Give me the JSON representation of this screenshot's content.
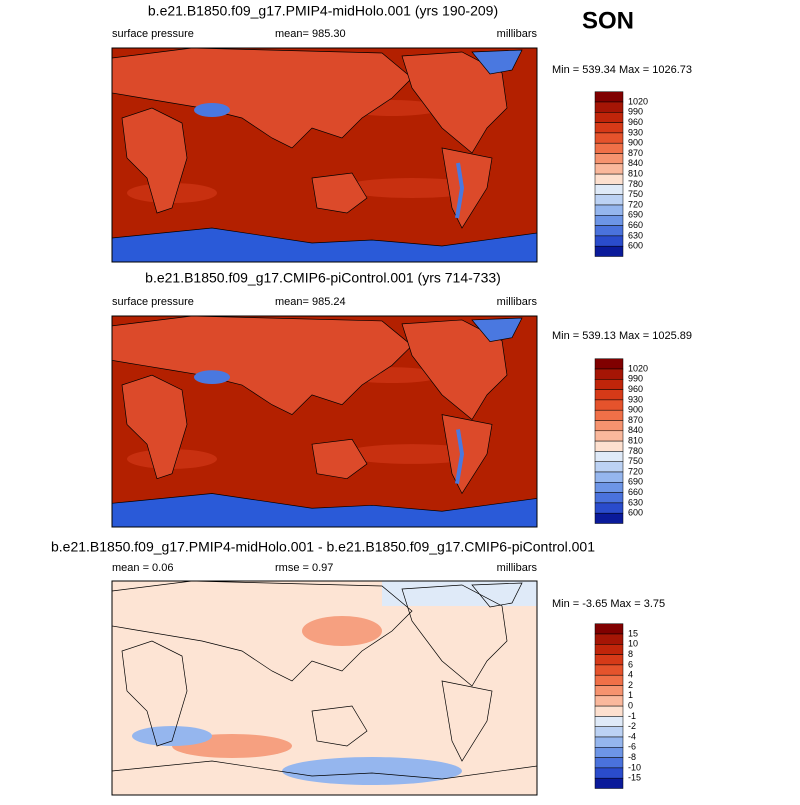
{
  "season": "SON",
  "panels": [
    {
      "title": "b.e21.B1850.f09_g17.PMIP4-midHolo.001 (yrs 190-209)",
      "left": "surface pressure",
      "center": "mean= 985.30",
      "right": "millibars",
      "minmax": "Min = 539.34 Max = 1026.73",
      "colorbar": {
        "labels": [
          1020,
          990,
          960,
          930,
          900,
          870,
          840,
          810,
          780,
          750,
          720,
          690,
          660,
          630,
          600
        ],
        "colors": [
          "#800000",
          "#a51505",
          "#c0250a",
          "#d63a18",
          "#e5532c",
          "#f07048",
          "#f6936f",
          "#fab89c",
          "#fde0cf",
          "#dfeaf8",
          "#bcd2f4",
          "#95b6ee",
          "#6d95e6",
          "#4a72dc",
          "#2a4ccc",
          "#0a1a9a"
        ]
      },
      "style": {
        "ocean": "#b32000",
        "land": "#dc4a2a",
        "ice": "#2a5ad8",
        "high": "#4a78e0"
      }
    },
    {
      "title": "b.e21.B1850.f09_g17.CMIP6-piControl.001 (yrs 714-733)",
      "left": "surface pressure",
      "center": "mean= 985.24",
      "right": "millibars",
      "minmax": "Min = 539.13 Max = 1025.89",
      "colorbar": {
        "labels": [
          1020,
          990,
          960,
          930,
          900,
          870,
          840,
          810,
          780,
          750,
          720,
          690,
          660,
          630,
          600
        ],
        "colors": [
          "#800000",
          "#a51505",
          "#c0250a",
          "#d63a18",
          "#e5532c",
          "#f07048",
          "#f6936f",
          "#fab89c",
          "#fde0cf",
          "#dfeaf8",
          "#bcd2f4",
          "#95b6ee",
          "#6d95e6",
          "#4a72dc",
          "#2a4ccc",
          "#0a1a9a"
        ]
      },
      "style": {
        "ocean": "#b32000",
        "land": "#dc4a2a",
        "ice": "#2a5ad8",
        "high": "#4a78e0"
      }
    },
    {
      "title": "b.e21.B1850.f09_g17.PMIP4-midHolo.001 - b.e21.B1850.f09_g17.CMIP6-piControl.001",
      "left": "mean =  0.06",
      "center": "rmse =  0.97",
      "right": "millibars",
      "minmax": "Min =  -3.65 Max =  3.75",
      "colorbar": {
        "labels": [
          15,
          10,
          8,
          6,
          4,
          2,
          1,
          0,
          -1,
          -2,
          -4,
          -6,
          -8,
          -10,
          -15
        ],
        "colors": [
          "#800000",
          "#a51505",
          "#c0250a",
          "#d63a18",
          "#e5532c",
          "#f07048",
          "#f6936f",
          "#fab89c",
          "#fde0cf",
          "#dfeaf8",
          "#bcd2f4",
          "#95b6ee",
          "#6d95e6",
          "#4a72dc",
          "#2a4ccc",
          "#0a1a9a"
        ]
      },
      "style": {
        "ocean": "#fde4d4",
        "land": "#dfeaf8",
        "ice": "#95b6ee",
        "high": "#f6a080"
      }
    }
  ]
}
